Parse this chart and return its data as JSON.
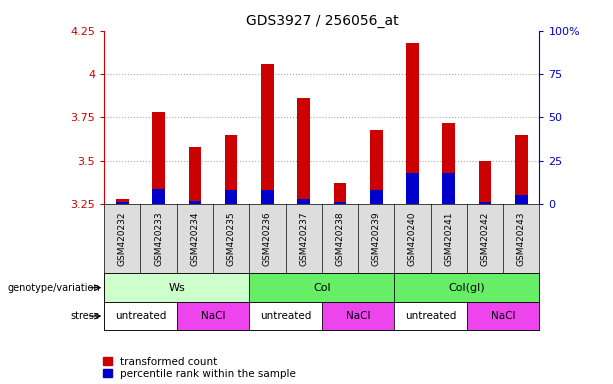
{
  "title": "GDS3927 / 256056_at",
  "samples": [
    "GSM420232",
    "GSM420233",
    "GSM420234",
    "GSM420235",
    "GSM420236",
    "GSM420237",
    "GSM420238",
    "GSM420239",
    "GSM420240",
    "GSM420241",
    "GSM420242",
    "GSM420243"
  ],
  "transformed_count": [
    3.28,
    3.78,
    3.58,
    3.65,
    4.06,
    3.86,
    3.37,
    3.68,
    4.18,
    3.72,
    3.5,
    3.65
  ],
  "percentile_rank": [
    3.26,
    3.34,
    3.27,
    3.33,
    3.33,
    3.28,
    3.26,
    3.33,
    3.43,
    3.43,
    3.26,
    3.3
  ],
  "baseline": 3.25,
  "ylim": [
    3.25,
    4.25
  ],
  "yticks_left": [
    3.25,
    3.5,
    3.75,
    4.0,
    4.25
  ],
  "yticks_right": [
    0,
    25,
    50,
    75,
    100
  ],
  "ytick_labels_left": [
    "3.25",
    "3.5",
    "3.75",
    "4",
    "4.25"
  ],
  "ytick_labels_right": [
    "0",
    "25",
    "50",
    "75",
    "100%"
  ],
  "bar_color": "#cc0000",
  "percentile_color": "#0000cc",
  "grid_color": "#aaaaaa",
  "bar_width": 0.35,
  "groups": [
    {
      "label": "Ws",
      "start": 0,
      "end": 3,
      "color": "#ccffcc"
    },
    {
      "label": "Col",
      "start": 4,
      "end": 7,
      "color": "#66ee66"
    },
    {
      "label": "Col(gl)",
      "start": 8,
      "end": 11,
      "color": "#66ee66"
    }
  ],
  "stress": [
    {
      "label": "untreated",
      "start": 0,
      "end": 1,
      "color": "#ffffff"
    },
    {
      "label": "NaCl",
      "start": 2,
      "end": 3,
      "color": "#ee44ee"
    },
    {
      "label": "untreated",
      "start": 4,
      "end": 5,
      "color": "#ffffff"
    },
    {
      "label": "NaCl",
      "start": 6,
      "end": 7,
      "color": "#ee44ee"
    },
    {
      "label": "untreated",
      "start": 8,
      "end": 9,
      "color": "#ffffff"
    },
    {
      "label": "NaCl",
      "start": 10,
      "end": 11,
      "color": "#ee44ee"
    }
  ],
  "genotype_label": "genotype/variation",
  "stress_label": "stress",
  "legend_red": "transformed count",
  "legend_blue": "percentile rank within the sample",
  "left_color": "#cc0000",
  "right_color": "#0000cc",
  "sample_bg_color": "#dddddd",
  "label_area_bg": "#dddddd"
}
